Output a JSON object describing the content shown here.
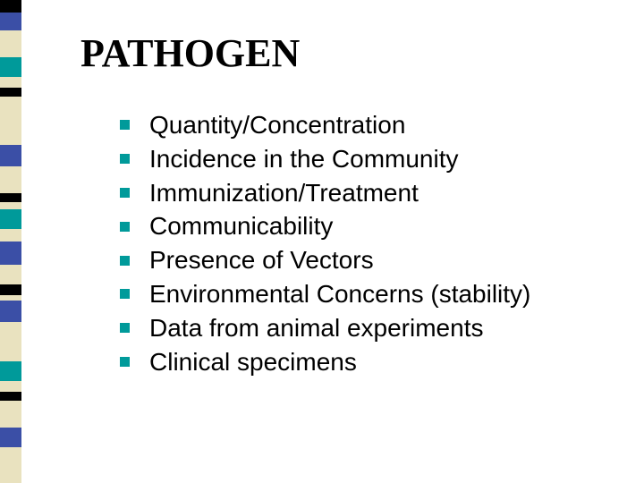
{
  "slide": {
    "title": "PATHOGEN",
    "title_fontsize": 44,
    "title_color": "#000000",
    "body_fontsize": 28,
    "body_color": "#000000",
    "bullet_marker": {
      "size": 11,
      "color": "#009a9a",
      "gap": 22,
      "indent": 44
    },
    "items": [
      "Quantity/Concentration",
      "Incidence in the Community",
      "Immunization/Treatment",
      "Communicability",
      "Presence of Vectors",
      "Environmental Concerns (stability)",
      "Data from animal experiments",
      "Clinical specimens"
    ],
    "background_color": "#ffffff"
  },
  "left_strip": {
    "width": 24,
    "segments": [
      {
        "color": "#000000",
        "h": 14
      },
      {
        "color": "#3b4fa6",
        "h": 20
      },
      {
        "color": "#e9e2bf",
        "h": 30
      },
      {
        "color": "#009a9a",
        "h": 22
      },
      {
        "color": "#e9e2bf",
        "h": 12
      },
      {
        "color": "#000000",
        "h": 10
      },
      {
        "color": "#e9e2bf",
        "h": 54
      },
      {
        "color": "#3b4fa6",
        "h": 24
      },
      {
        "color": "#e9e2bf",
        "h": 30
      },
      {
        "color": "#000000",
        "h": 10
      },
      {
        "color": "#e9e2bf",
        "h": 8
      },
      {
        "color": "#009a9a",
        "h": 22
      },
      {
        "color": "#e9e2bf",
        "h": 14
      },
      {
        "color": "#3b4fa6",
        "h": 26
      },
      {
        "color": "#e9e2bf",
        "h": 22
      },
      {
        "color": "#000000",
        "h": 12
      },
      {
        "color": "#e9e2bf",
        "h": 6
      },
      {
        "color": "#3b4fa6",
        "h": 24
      },
      {
        "color": "#e9e2bf",
        "h": 44
      },
      {
        "color": "#009a9a",
        "h": 22
      },
      {
        "color": "#e9e2bf",
        "h": 12
      },
      {
        "color": "#000000",
        "h": 10
      },
      {
        "color": "#e9e2bf",
        "h": 30
      },
      {
        "color": "#3b4fa6",
        "h": 22
      },
      {
        "color": "#e9e2bf",
        "h": 40
      }
    ]
  }
}
